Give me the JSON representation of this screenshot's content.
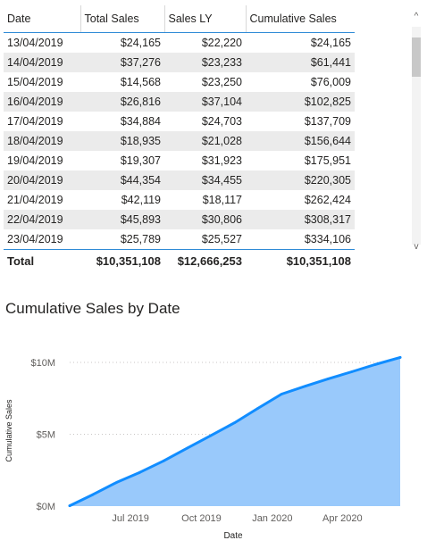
{
  "table": {
    "headers": [
      "Date",
      "Total Sales",
      "Sales LY",
      "Cumulative Sales"
    ],
    "rows": [
      [
        "13/04/2019",
        "$24,165",
        "$22,220",
        "$24,165"
      ],
      [
        "14/04/2019",
        "$37,276",
        "$23,233",
        "$61,441"
      ],
      [
        "15/04/2019",
        "$14,568",
        "$23,250",
        "$76,009"
      ],
      [
        "16/04/2019",
        "$26,816",
        "$37,104",
        "$102,825"
      ],
      [
        "17/04/2019",
        "$34,884",
        "$24,703",
        "$137,709"
      ],
      [
        "18/04/2019",
        "$18,935",
        "$21,028",
        "$156,644"
      ],
      [
        "19/04/2019",
        "$19,307",
        "$31,923",
        "$175,951"
      ],
      [
        "20/04/2019",
        "$44,354",
        "$34,455",
        "$220,305"
      ],
      [
        "21/04/2019",
        "$42,119",
        "$18,117",
        "$262,424"
      ],
      [
        "22/04/2019",
        "$45,893",
        "$30,806",
        "$308,317"
      ],
      [
        "23/04/2019",
        "$25,789",
        "$25,527",
        "$334,106"
      ]
    ],
    "total": [
      "Total",
      "$10,351,108",
      "$12,666,253",
      "$10,351,108"
    ],
    "header_accent_color": "#2f8bd6",
    "banding_color": "#ebebeb"
  },
  "scrollbar": {
    "up_icon": "chevron-up-icon",
    "down_icon": "chevron-down-icon",
    "up_glyph": "^",
    "down_glyph": "v"
  },
  "chart_data": {
    "type": "area",
    "title": "Cumulative Sales by Date",
    "xlabel": "Date",
    "ylabel": "Cumulative Sales",
    "x_ticks": [
      "Jul 2019",
      "Oct 2019",
      "Jan 2020",
      "Apr 2020"
    ],
    "y_ticks": [
      {
        "value": 0,
        "label": "$0M"
      },
      {
        "value": 5000000,
        "label": "$5M"
      },
      {
        "value": 10000000,
        "label": "$10M"
      }
    ],
    "ylim": [
      0,
      10500000
    ],
    "xlim": [
      "2019-04-13",
      "2020-06-15"
    ],
    "grid": true,
    "line_color": "#118dff",
    "fill_color": "#99c9fb",
    "x": [
      "2019-04-13",
      "2019-05-13",
      "2019-06-13",
      "2019-07-13",
      "2019-08-13",
      "2019-09-13",
      "2019-10-13",
      "2019-11-13",
      "2019-12-13",
      "2020-01-13",
      "2020-02-13",
      "2020-03-13",
      "2020-04-13",
      "2020-05-13",
      "2020-06-15"
    ],
    "values": [
      24165,
      800000,
      1650000,
      2350000,
      3150000,
      4050000,
      4900000,
      5800000,
      6800000,
      7800000,
      8350000,
      8850000,
      9350000,
      9850000,
      10351108
    ]
  }
}
